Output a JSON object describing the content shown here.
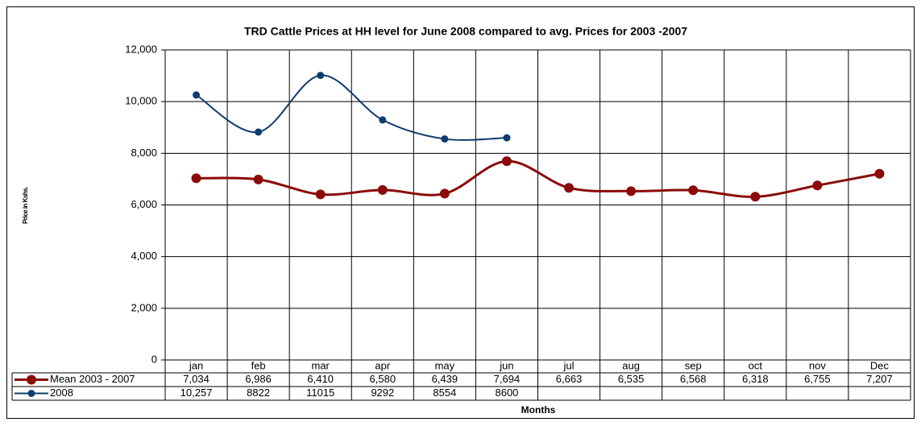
{
  "chart_data": {
    "type": "line",
    "title": "TRD Cattle Prices at HH level for June 2008 compared to avg. Prices for 2003 -2007",
    "y_label": "Price in Kshs.",
    "x_label": "Months",
    "categories": [
      "jan",
      "feb",
      "mar",
      "apr",
      "may",
      "jun",
      "jul",
      "aug",
      "sep",
      "oct",
      "nov",
      "Dec"
    ],
    "series": [
      {
        "name": "Mean 2003 - 2007",
        "color": "#8b0a0a",
        "values": [
          7034,
          6986,
          6410,
          6580,
          6439,
          7694,
          6663,
          6535,
          6568,
          6318,
          6755,
          7207
        ],
        "value_labels": [
          "7,034",
          "6,986",
          "6,410",
          "6,580",
          "6,439",
          "7,694",
          "6,663",
          "6,535",
          "6,568",
          "6,318",
          "6,755",
          "7,207"
        ]
      },
      {
        "name": "2008",
        "color": "#0f3b6e",
        "values": [
          10257,
          8822,
          11015,
          9292,
          8554,
          8600,
          null,
          null,
          null,
          null,
          null,
          null
        ],
        "value_labels": [
          "10,257",
          "8822",
          "11015",
          "9292",
          "8554",
          "8600",
          null,
          null,
          null,
          null,
          null,
          null
        ]
      }
    ],
    "ylim": [
      0,
      12000
    ],
    "yticks": [
      0,
      {
        "value": 2000,
        "label": "2,000"
      },
      {
        "value": 4000,
        "label": "4,000"
      },
      {
        "value": 6000,
        "label": "6,000"
      },
      {
        "value": 8000,
        "label": "8,000"
      },
      {
        "value": 10000,
        "label": "10,000"
      },
      {
        "value": 12000,
        "label": "12,000"
      }
    ],
    "grid": true
  }
}
